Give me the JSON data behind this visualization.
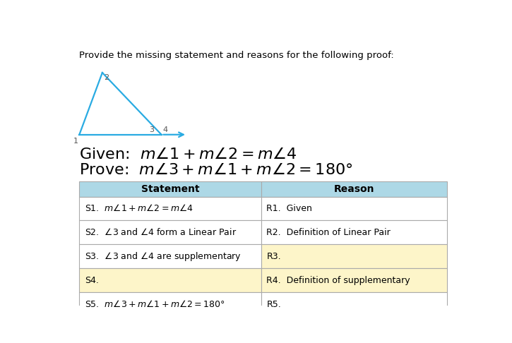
{
  "title_text": "Provide the missing statement and reasons for the following proof:",
  "given_text": "Given:  $m\\angle1 + m\\angle2 = m\\angle4$",
  "prove_text": "Prove:  $m\\angle3 + m\\angle1 + m\\angle2 = 180°$",
  "header_bg": "#add8e6",
  "row_bg_normal": "#ffffff",
  "row_bg_highlight": "#fdf5c9",
  "border_color": "#aaaaaa",
  "table_headers": [
    "Statement",
    "Reason"
  ],
  "rows": [
    [
      "S1.  $m\\angle1 + m\\angle2 = m\\angle4$",
      "R1.  Given"
    ],
    [
      "S2.  $\\angle3$ and $\\angle4$ form a Linear Pair",
      "R2.  Definition of Linear Pair"
    ],
    [
      "S3.  $\\angle3$ and $\\angle4$ are supplementary",
      "R3."
    ],
    [
      "S4.",
      "R4.  Definition of supplementary"
    ],
    [
      "S5.  $m\\angle3 + m\\angle1 + m\\angle2 = 180°$",
      "R5."
    ]
  ],
  "highlight_left": [
    false,
    false,
    false,
    true,
    false
  ],
  "highlight_right": [
    false,
    false,
    true,
    true,
    false
  ],
  "triangle_color": "#29abe2",
  "label_color": "#555555",
  "title_fontsize": 9.5,
  "given_fontsize": 16,
  "table_text_fontsize": 9,
  "header_fontsize": 10
}
